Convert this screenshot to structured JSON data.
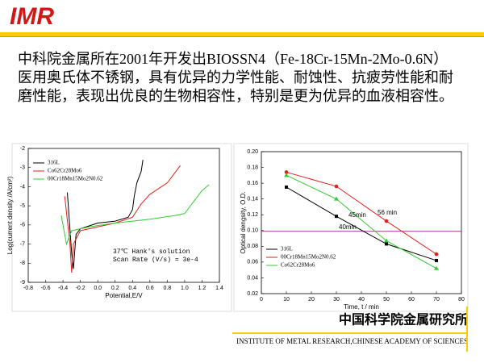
{
  "header": {
    "logo": "IMR"
  },
  "body_text": "中科院金属所在2001年开发出BIOSSN4（Fe-18Cr-15Mn-2Mo-0.6N）医用奥氏体不锈钢，具有优异的力学性能、耐蚀性、抗疲劳性能和耐磨性能，表现出优良的生物相容性，特别是更为优异的血液相容性。",
  "chart_data": [
    {
      "type": "line",
      "xlabel": "Potential,E/V",
      "ylabel": "Log(current density /A/cm²)",
      "xlim": [
        -0.8,
        1.4
      ],
      "ylim": [
        -9,
        -2
      ],
      "xticks": [
        -0.8,
        -0.6,
        -0.4,
        -0.2,
        {
          "value": 0,
          "label": "0.0"
        },
        0.2,
        0.4,
        0.6,
        0.8,
        {
          "value": 1,
          "label": "1.0"
        },
        1.2,
        1.4
      ],
      "yticks": [
        -9,
        -8,
        -7,
        -6,
        -5,
        -4,
        -3,
        -2
      ],
      "annotations": [
        "37℃ Hank's solution",
        "Scan Rate (V/s) = 3e-4"
      ],
      "series": [
        {
          "name": "316L",
          "color": "#000000",
          "x": [
            -0.35,
            -0.3,
            -0.28,
            -0.25,
            -0.2,
            0,
            0.2,
            0.35,
            0.4,
            0.42,
            0.45,
            0.5,
            0.52
          ],
          "values": [
            -4.3,
            -7.5,
            -8.3,
            -6.5,
            -6.2,
            -5.9,
            -5.8,
            -5.6,
            -5.2,
            -4.5,
            -3.8,
            -3.2,
            -2.6
          ]
        },
        {
          "name": "Co62Cr28Mo6",
          "color": "#e0201b",
          "x": [
            -0.38,
            -0.32,
            -0.3,
            -0.28,
            -0.2,
            0,
            0.2,
            0.4,
            0.5,
            0.6,
            0.8,
            0.9,
            0.95
          ],
          "values": [
            -4.5,
            -7,
            -8.5,
            -7,
            -6.3,
            -6.1,
            -5.9,
            -5.6,
            -4.9,
            -4.4,
            -3.8,
            -3.2,
            -2.9
          ]
        },
        {
          "name": "00Cr18Mn15Mo2N0.62",
          "color": "#33cc33",
          "x": [
            -0.42,
            -0.38,
            -0.36,
            -0.3,
            -0.1,
            0.2,
            0.6,
            0.9,
            1.0,
            1.1,
            1.2,
            1.28
          ],
          "values": [
            -5.5,
            -6.5,
            -7,
            -6.3,
            -6.1,
            -5.9,
            -5.7,
            -5.5,
            -5.4,
            -4.8,
            -4.2,
            -3.9
          ]
        }
      ]
    },
    {
      "type": "line",
      "xlabel": "Time, t / min",
      "ylabel": "Optical dengsity, O.D.",
      "xlim": [
        0,
        80
      ],
      "ylim": [
        0.02,
        0.2
      ],
      "xticks": [
        0,
        10,
        20,
        30,
        40,
        50,
        60,
        70,
        80
      ],
      "yticks": [
        0.02,
        0.04,
        0.06,
        0.08,
        {
          "value": 0.1,
          "label": "0.10"
        },
        0.12,
        0.14,
        0.16,
        0.18,
        {
          "value": 0.2,
          "label": "0.20"
        }
      ],
      "reference_line": 0.099,
      "reference_color": "#993399",
      "annotations": [
        "45min",
        "56 min",
        "40min"
      ],
      "series": [
        {
          "name": "316L",
          "color": "#000000",
          "marker": "square",
          "x": [
            10,
            30,
            50,
            70
          ],
          "values": [
            0.155,
            0.118,
            0.083,
            0.062
          ]
        },
        {
          "name": "00Cr18Mn15Mo2N0.62",
          "color": "#e0201b",
          "marker": "circle",
          "x": [
            10,
            30,
            50,
            70
          ],
          "values": [
            0.174,
            0.156,
            0.112,
            0.07
          ]
        },
        {
          "name": "Co62Cr28Mo6",
          "color": "#33cc33",
          "marker": "triangle",
          "x": [
            10,
            30,
            50,
            70
          ],
          "values": [
            0.17,
            0.14,
            0.087,
            0.052
          ]
        }
      ]
    }
  ],
  "footer": {
    "institute_cn": "中国科学院金属研究所",
    "institute_en": "INSTITUTE OF METAL RESEARCH,CHINESE ACADEMY OF SCIENCES"
  }
}
